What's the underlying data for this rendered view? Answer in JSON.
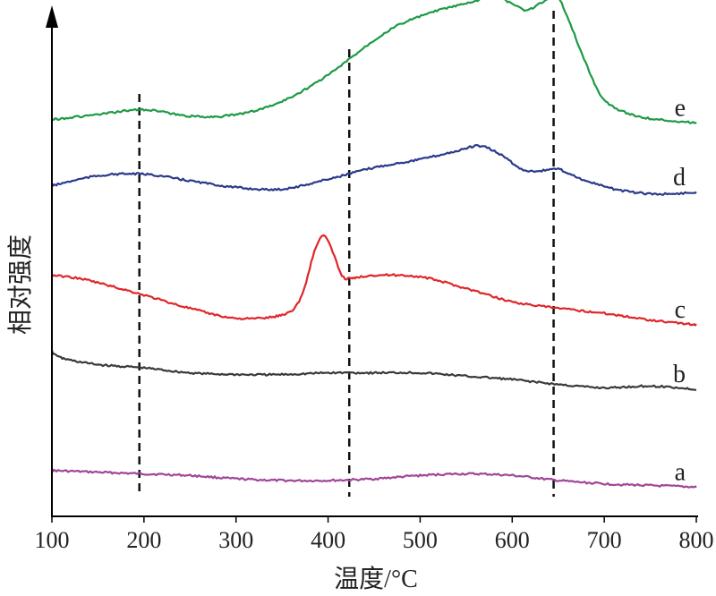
{
  "chart_data": {
    "type": "line",
    "xlabel": "温度/°C",
    "ylabel": "相对强度",
    "xlim": [
      100,
      800
    ],
    "xticks": [
      100,
      200,
      300,
      400,
      500,
      600,
      700,
      800
    ],
    "y_axis_values_shown": false,
    "grid": false,
    "reference_lines_x": [
      195,
      423,
      645
    ],
    "series": [
      {
        "name": "a",
        "color": "#a0459a",
        "x": [
          100,
          150,
          200,
          250,
          300,
          350,
          400,
          450,
          500,
          550,
          600,
          650,
          700,
          750,
          800
        ],
        "values": [
          0.06,
          0.055,
          0.05,
          0.045,
          0.035,
          0.03,
          0.03,
          0.035,
          0.045,
          0.05,
          0.045,
          0.03,
          0.02,
          0.015,
          0.01
        ]
      },
      {
        "name": "b",
        "color": "#3a3a3a",
        "x": [
          100,
          110,
          150,
          200,
          250,
          300,
          350,
          400,
          450,
          500,
          550,
          600,
          650,
          700,
          750,
          800
        ],
        "values": [
          0.42,
          0.4,
          0.38,
          0.37,
          0.355,
          0.35,
          0.35,
          0.355,
          0.355,
          0.355,
          0.345,
          0.335,
          0.32,
          0.31,
          0.315,
          0.305
        ]
      },
      {
        "name": "c",
        "color": "#e0262a",
        "x": [
          100,
          130,
          160,
          200,
          250,
          300,
          350,
          370,
          385,
          395,
          405,
          415,
          425,
          450,
          500,
          550,
          600,
          650,
          700,
          750,
          800
        ],
        "values": [
          0.65,
          0.64,
          0.62,
          0.59,
          0.55,
          0.52,
          0.53,
          0.58,
          0.72,
          0.77,
          0.72,
          0.65,
          0.64,
          0.65,
          0.645,
          0.61,
          0.57,
          0.55,
          0.535,
          0.515,
          0.5
        ]
      },
      {
        "name": "d",
        "color": "#2b3a8a",
        "x": [
          100,
          150,
          200,
          250,
          300,
          350,
          400,
          450,
          500,
          540,
          565,
          590,
          610,
          630,
          650,
          680,
          720,
          760,
          800
        ],
        "values": [
          0.92,
          0.95,
          0.955,
          0.935,
          0.915,
          0.91,
          0.94,
          0.975,
          1.0,
          1.025,
          1.04,
          1.01,
          0.97,
          0.965,
          0.97,
          0.935,
          0.905,
          0.895,
          0.9
        ]
      },
      {
        "name": "e",
        "color": "#1e9a45",
        "x": [
          100,
          150,
          200,
          250,
          300,
          350,
          400,
          450,
          480,
          520,
          550,
          580,
          600,
          615,
          630,
          648,
          660,
          680,
          700,
          730,
          760,
          800
        ],
        "values": [
          1.12,
          1.135,
          1.15,
          1.13,
          1.135,
          1.175,
          1.255,
          1.36,
          1.41,
          1.45,
          1.47,
          1.49,
          1.47,
          1.45,
          1.47,
          1.49,
          1.43,
          1.29,
          1.18,
          1.135,
          1.12,
          1.11
        ]
      }
    ]
  }
}
